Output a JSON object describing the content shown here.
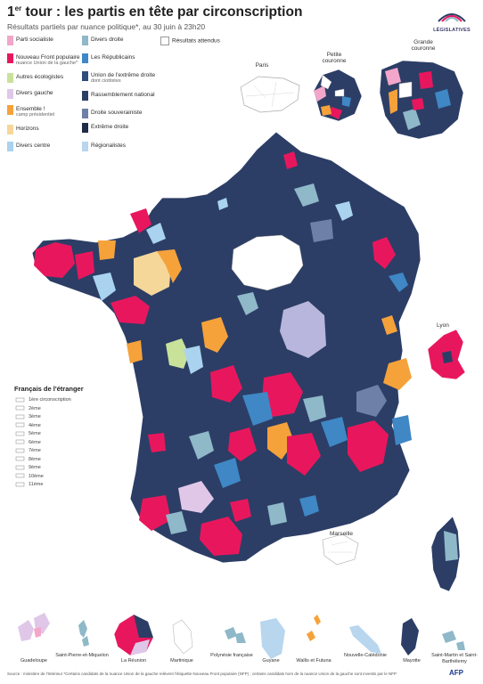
{
  "title_prefix": "1",
  "title_sup": "er",
  "title_rest": " tour : les partis en tête par circonscription",
  "subtitle": "Résultats partiels par nuance politique*, au 30 juin à 23h20",
  "logo": {
    "text": "LÉGISLATIVES"
  },
  "legend": [
    {
      "label": "Parti socialiste",
      "color": "#f2a6c9"
    },
    {
      "label": "Nouveau Front populaire",
      "sub": "nuance Union de la gauche*",
      "color": "#e8175d"
    },
    {
      "label": "Autres écologistes",
      "color": "#c9e29a"
    },
    {
      "label": "Divers gauche",
      "color": "#e0c7e8"
    },
    {
      "label": "Ensemble !",
      "sub": "camp présidentiel",
      "color": "#f5a23b"
    },
    {
      "label": "Horizons",
      "color": "#f6d79a"
    },
    {
      "label": "Divers centre",
      "color": "#a9d3ee"
    },
    {
      "label": "Divers droite",
      "color": "#8fb8c9"
    },
    {
      "label": "Les Républicains",
      "color": "#3f87c5"
    },
    {
      "label": "Union de l'extrême droite",
      "sub": "dont ciottistes",
      "color": "#2e4d7a"
    },
    {
      "label": "Rassemblement national",
      "color": "#2c3e66"
    },
    {
      "label": "Droite souverainiste",
      "color": "#6e7fa8"
    },
    {
      "label": "Extrême droite",
      "color": "#1f2b47"
    },
    {
      "label": "Régionalistes",
      "color": "#b8d6ee"
    }
  ],
  "awaited": "Résultats attendus",
  "insets": {
    "paris": "Paris",
    "petite": "Petite couronne",
    "grande": "Grande couronne"
  },
  "cities": {
    "lyon": "Lyon",
    "marseille": "Marseille"
  },
  "abroad": {
    "title": "Français de l'étranger",
    "rows": [
      "1ère circonscription",
      "2ème",
      "3ème",
      "4ème",
      "5ème",
      "6ème",
      "7ème",
      "8ème",
      "9ème",
      "10ème",
      "11ème"
    ]
  },
  "dom": [
    {
      "label": "Guadeloupe"
    },
    {
      "label": "Saint-Pierre-et-Miquelon"
    },
    {
      "label": "La Réunion"
    },
    {
      "label": "Martinique"
    },
    {
      "label": "Polynésie française"
    },
    {
      "label": "Guyane"
    },
    {
      "label": "Wallis et Futuna"
    },
    {
      "label": "Nouvelle-Calédonie"
    },
    {
      "label": "Mayotte"
    },
    {
      "label": "Saint-Martin et Saint-Barthélemy"
    }
  ],
  "footer": "Source : ministère de l'Intérieur      *Certains candidats de la nuance Union de la gauche relèvent l'étiquette Nouveau Front populaire (NFP) ; certains candidats hors de la nuance Union de la gauche sont investis par le NFP",
  "afp": "AFP"
}
